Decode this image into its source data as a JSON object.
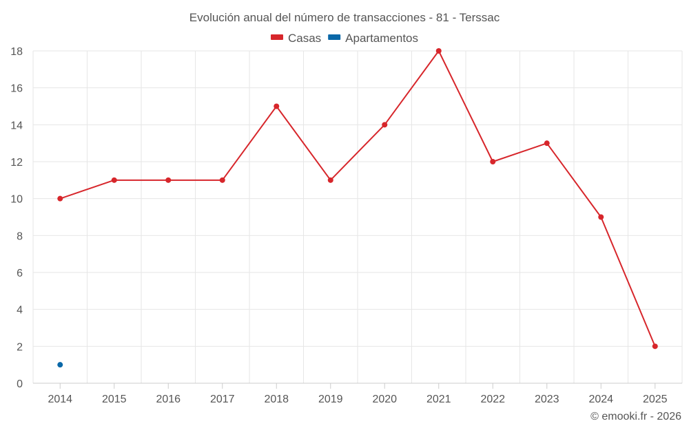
{
  "chart_data": {
    "type": "line",
    "title": "Evolución anual del número de transacciones - 81 - Terssac",
    "categories": [
      "2014",
      "2015",
      "2016",
      "2017",
      "2018",
      "2019",
      "2020",
      "2021",
      "2022",
      "2023",
      "2024",
      "2025"
    ],
    "series": [
      {
        "name": "Casas",
        "color": "#d7262b",
        "values": [
          10,
          11,
          11,
          11,
          15,
          11,
          14,
          18,
          12,
          13,
          9,
          2
        ]
      },
      {
        "name": "Apartamentos",
        "color": "#0a68a8",
        "values": [
          1,
          null,
          null,
          null,
          null,
          null,
          null,
          null,
          null,
          null,
          null,
          null
        ]
      }
    ],
    "ylim": [
      0,
      18
    ],
    "yticks": [
      0,
      2,
      4,
      6,
      8,
      10,
      12,
      14,
      16,
      18
    ],
    "grid": true,
    "legend_position": "top-center",
    "xlabel": "",
    "ylabel": ""
  },
  "credit": "© emooki.fr - 2026"
}
